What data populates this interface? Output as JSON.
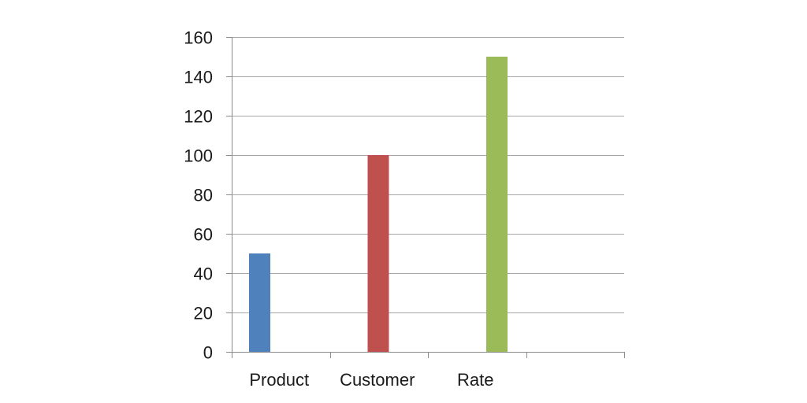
{
  "chart_data": {
    "type": "bar",
    "categories": [
      "Product",
      "Customer",
      "Rate"
    ],
    "values": [
      50,
      100,
      150
    ],
    "colors": [
      "#4f81bd",
      "#c0504d",
      "#9bbb59"
    ],
    "ylim": [
      0,
      160
    ],
    "yticks": [
      0,
      20,
      40,
      60,
      80,
      100,
      120,
      140,
      160
    ],
    "grid": true,
    "slots": 4
  }
}
